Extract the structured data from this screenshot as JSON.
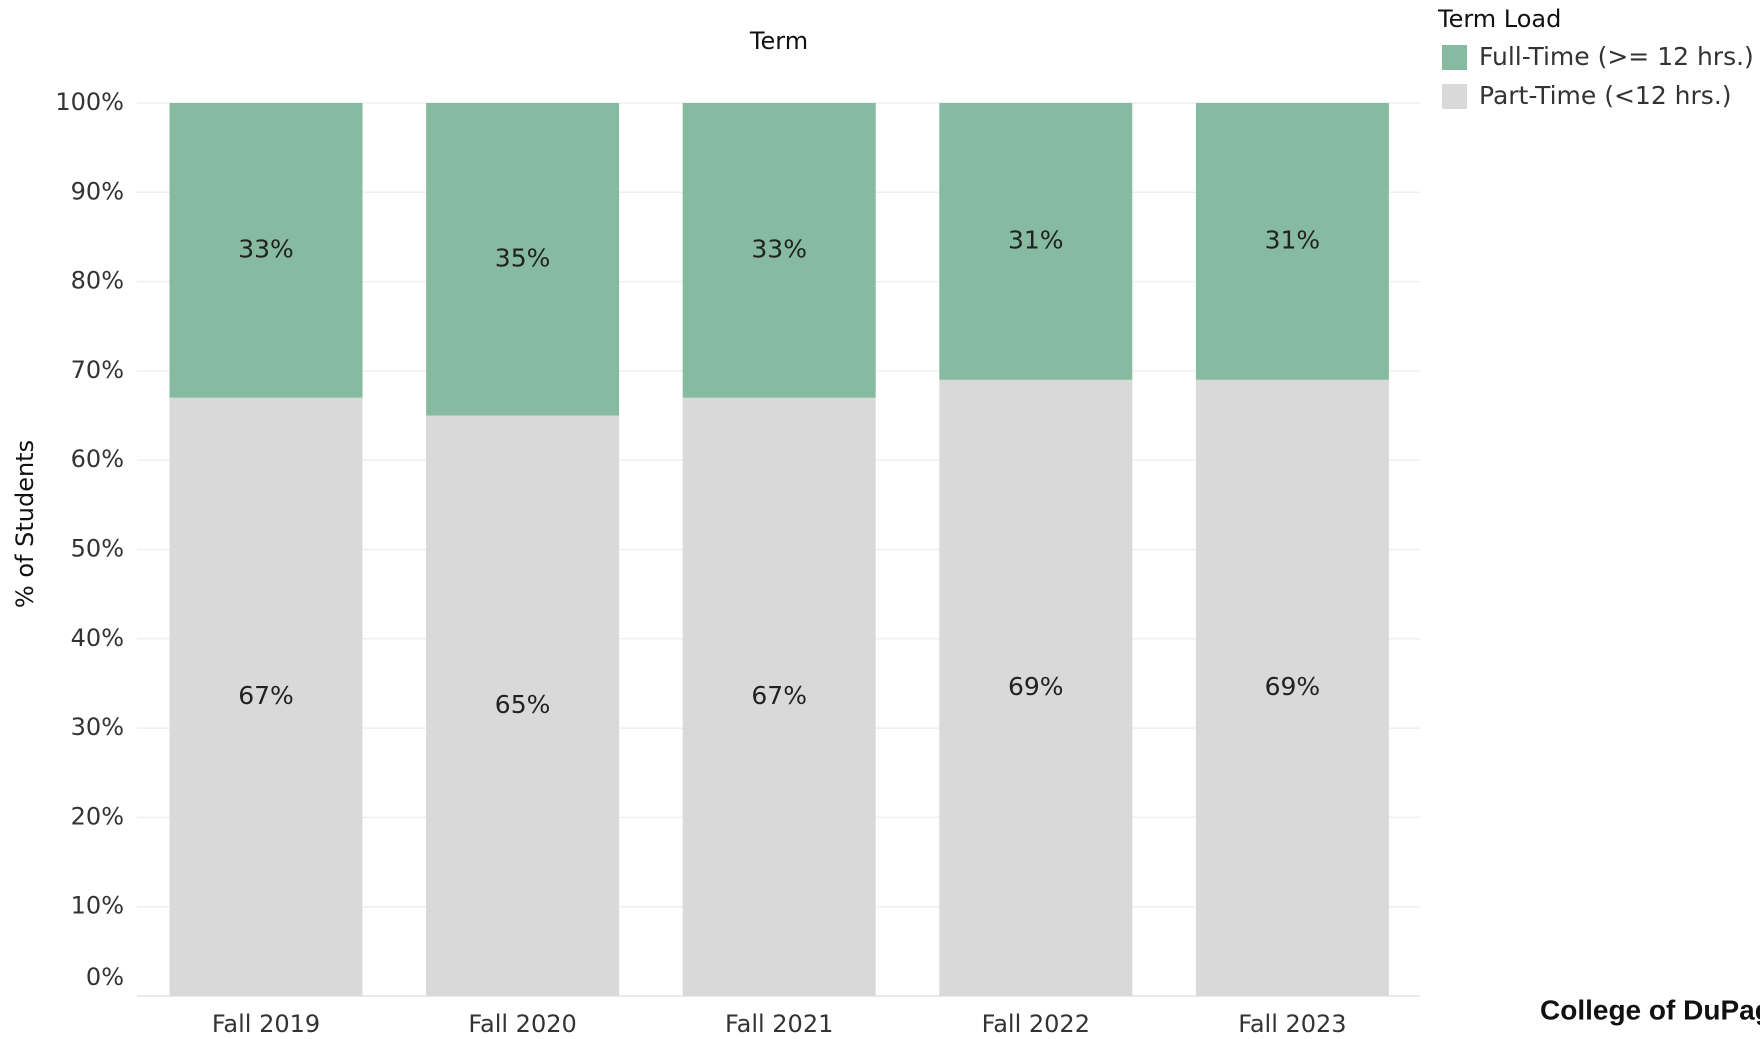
{
  "chart_data": {
    "type": "stacked_bar",
    "title": "Term",
    "y_label": "% of Students",
    "legend_title": "Term Load",
    "legend_position": "top-right",
    "logo": "College of DuPage",
    "categories": [
      "Fall 2019",
      "Fall 2020",
      "Fall 2021",
      "Fall 2022",
      "Fall 2023"
    ],
    "series": [
      {
        "name": "Full-Time (>= 12 hrs.)",
        "color": "#86bba1",
        "values": [
          33,
          35,
          33,
          31,
          31
        ],
        "value_labels": [
          "33%",
          "35%",
          "33%",
          "31%",
          "31%"
        ]
      },
      {
        "name": "Part-Time (<12 hrs.)",
        "color": "#d9d9d9",
        "values": [
          67,
          65,
          67,
          69,
          69
        ],
        "value_labels": [
          "67%",
          "65%",
          "67%",
          "69%",
          "69%"
        ]
      }
    ],
    "ylim": [
      0,
      100
    ],
    "yticks": [
      {
        "value": 0,
        "label": "0%"
      },
      {
        "value": 10,
        "label": "10%"
      },
      {
        "value": 20,
        "label": "20%"
      },
      {
        "value": 30,
        "label": "30%"
      },
      {
        "value": 40,
        "label": "40%"
      },
      {
        "value": 50,
        "label": "50%"
      },
      {
        "value": 60,
        "label": "60%"
      },
      {
        "value": 70,
        "label": "70%"
      },
      {
        "value": 80,
        "label": "80%"
      },
      {
        "value": 90,
        "label": "90%"
      },
      {
        "value": 100,
        "label": "100%"
      }
    ],
    "grid": true
  }
}
